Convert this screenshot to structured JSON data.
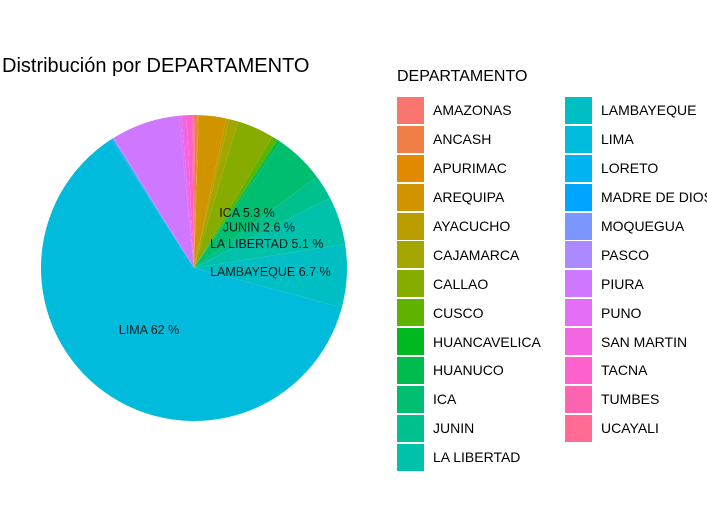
{
  "chart_data": {
    "type": "pie",
    "title": "Distribución por DEPARTAMENTO",
    "legend_title": "DEPARTAMENTO",
    "legend_position": "right",
    "slices": [
      {
        "name": "AMAZONAS",
        "value": 0.1,
        "color": "#F8766D",
        "label": ""
      },
      {
        "name": "ANCASH",
        "value": 0.3,
        "color": "#EF7F47",
        "label": ""
      },
      {
        "name": "APURIMAC",
        "value": 0.1,
        "color": "#E18A00",
        "label": ""
      },
      {
        "name": "AREQUIPA",
        "value": 2.9,
        "color": "#CF9400",
        "label": ""
      },
      {
        "name": "AYACUCHO",
        "value": 0.3,
        "color": "#BA9E00",
        "label": ""
      },
      {
        "name": "CAJAMARCA",
        "value": 1.0,
        "color": "#A3A500",
        "label": ""
      },
      {
        "name": "CALLAO",
        "value": 3.9,
        "color": "#86AC00",
        "label": ""
      },
      {
        "name": "CUSCO",
        "value": 0.6,
        "color": "#5EB300",
        "label": ""
      },
      {
        "name": "HUANCAVELICA",
        "value": 0.1,
        "color": "#00B81F",
        "label": ""
      },
      {
        "name": "HUANUCO",
        "value": 0.3,
        "color": "#00BB4E",
        "label": ""
      },
      {
        "name": "ICA",
        "value": 5.3,
        "color": "#00BE70",
        "label": "ICA 5.3 %"
      },
      {
        "name": "JUNIN",
        "value": 2.6,
        "color": "#00C08E",
        "label": "JUNIN 2.6 %"
      },
      {
        "name": "LA LIBERTAD",
        "value": 5.1,
        "color": "#00C1A9",
        "label": "LA LIBERTAD 5.1 %"
      },
      {
        "name": "LAMBAYEQUE",
        "value": 6.7,
        "color": "#00BFC4",
        "label": "LAMBAYEQUE 6.7 %"
      },
      {
        "name": "LIMA",
        "value": 62,
        "color": "#00BBDB",
        "label": "LIMA 62 %"
      },
      {
        "name": "LORETO",
        "value": 0.1,
        "color": "#00B4EF",
        "label": ""
      },
      {
        "name": "MADRE DE DIOS",
        "value": 0.1,
        "color": "#00A5FF",
        "label": ""
      },
      {
        "name": "MOQUEGUA",
        "value": 0.1,
        "color": "#7B97FF",
        "label": ""
      },
      {
        "name": "PASCO",
        "value": 0.1,
        "color": "#AD89FF",
        "label": ""
      },
      {
        "name": "PIURA",
        "value": 7.2,
        "color": "#CF78FF",
        "label": ""
      },
      {
        "name": "PUNO",
        "value": 0.3,
        "color": "#E46EF6",
        "label": ""
      },
      {
        "name": "SAN MARTIN",
        "value": 0.5,
        "color": "#F366E2",
        "label": ""
      },
      {
        "name": "TACNA",
        "value": 0.6,
        "color": "#FD61CB",
        "label": ""
      },
      {
        "name": "TUMBES",
        "value": 0.1,
        "color": "#FF64B0",
        "label": ""
      },
      {
        "name": "UCAYALI",
        "value": 0.1,
        "color": "#FF6B93",
        "label": ""
      }
    ]
  }
}
